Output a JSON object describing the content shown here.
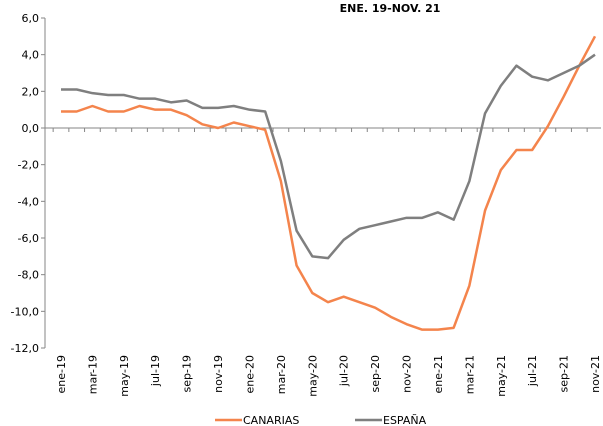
{
  "chart_data": {
    "type": "line",
    "title": "ENE. 19-NOV. 21",
    "categories": [
      "ene-19",
      null,
      "mar-19",
      null,
      "may-19",
      null,
      "jul-19",
      null,
      "sep-19",
      null,
      "nov-19",
      null,
      "ene-20",
      null,
      "mar-20",
      null,
      "may-20",
      null,
      "jul-20",
      null,
      "sep-20",
      null,
      "nov-20",
      null,
      "ene-21",
      null,
      "mar-21",
      null,
      "may-21",
      null,
      "jul-21",
      null,
      "sep-21",
      null,
      "nov-21"
    ],
    "series": [
      {
        "name": "CANARIAS",
        "color": "#f4844c",
        "values": [
          0.9,
          0.9,
          1.2,
          0.9,
          0.9,
          1.2,
          1.0,
          1.0,
          0.7,
          0.2,
          0.0,
          0.3,
          0.1,
          -0.1,
          -2.9,
          -7.5,
          -9.0,
          -9.5,
          -9.2,
          -9.5,
          -9.8,
          -10.3,
          -10.7,
          -11.0,
          -11.0,
          -10.9,
          -8.6,
          -4.5,
          -2.3,
          -1.2,
          -1.2,
          0.1,
          1.7,
          3.4,
          5.0
        ]
      },
      {
        "name": "ESPAÑA",
        "color": "#7f7f7f",
        "values": [
          2.1,
          2.1,
          1.9,
          1.8,
          1.8,
          1.6,
          1.6,
          1.4,
          1.5,
          1.1,
          1.1,
          1.2,
          1.0,
          0.9,
          -1.8,
          -5.6,
          -7.0,
          -7.1,
          -6.1,
          -5.5,
          -5.3,
          -5.1,
          -4.9,
          -4.9,
          -4.6,
          -5.0,
          -2.9,
          0.8,
          2.3,
          3.4,
          2.8,
          2.6,
          3.0,
          3.4,
          4.0
        ]
      }
    ],
    "ylim": [
      -12,
      6
    ],
    "yticks": [
      {
        "value": -12,
        "label": "-12,0"
      },
      {
        "value": -10,
        "label": "-10,0"
      },
      {
        "value": -8,
        "label": "-8,0"
      },
      {
        "value": -6,
        "label": "-6,0"
      },
      {
        "value": -4,
        "label": "-4,0"
      },
      {
        "value": -2,
        "label": "-2,0"
      },
      {
        "value": 0,
        "label": "0,0"
      },
      {
        "value": 2,
        "label": "2,0"
      },
      {
        "value": 4,
        "label": "4,0"
      },
      {
        "value": 6,
        "label": "6,0"
      }
    ],
    "grid": false,
    "legend": "bottom"
  }
}
